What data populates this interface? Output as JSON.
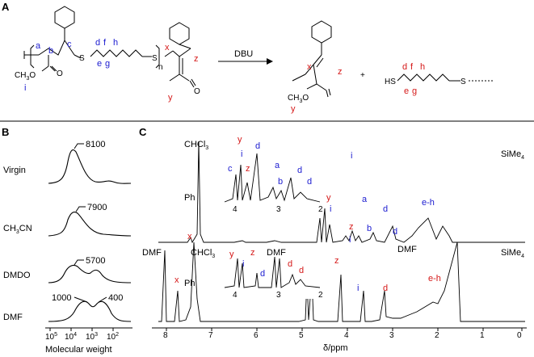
{
  "panel_a": {
    "label": "A",
    "arrow_reagent": "DBU",
    "plus": "+",
    "polymer_labels": [
      "a",
      "b",
      "c",
      "d",
      "f",
      "h",
      "e",
      "g",
      "i",
      "x",
      "y",
      "z"
    ],
    "polymer_atoms": [
      "S",
      "S",
      "n",
      "CH3O",
      "O",
      "O"
    ],
    "product_ester": "CH3O",
    "product_labels": [
      "x",
      "z",
      "y"
    ],
    "thiol_label": "HS",
    "thiol_S": "S",
    "thiol_labels": [
      "d",
      "f",
      "h",
      "e",
      "g"
    ]
  },
  "panel_b": {
    "label": "B",
    "xlabel": "Molecular weight",
    "ticks": [
      "10^5",
      "10^4",
      "10^3",
      "10^2"
    ],
    "tick_values": [
      100000,
      10000,
      1000,
      100
    ],
    "traces": [
      {
        "name": "Virgin",
        "peak_labels": [
          "8100"
        ]
      },
      {
        "name": "CH3CN",
        "peak_labels": [
          "7900"
        ]
      },
      {
        "name": "DMDO",
        "peak_labels": [
          "5700"
        ]
      },
      {
        "name": "DMF",
        "peak_labels": [
          "1000",
          "400"
        ]
      }
    ]
  },
  "panel_c": {
    "label": "C",
    "xlabel": "δ/ppm",
    "xlim": [
      8.4,
      -0.2
    ],
    "ticks": [
      "8",
      "7",
      "6",
      "5",
      "4",
      "3",
      "2",
      "1",
      "0"
    ],
    "inset_ticks": [
      "4",
      "3",
      "2"
    ],
    "top": {
      "solvent": "CHCl3",
      "reference": "SiMe4",
      "ph": "Ph",
      "labels_blue": [
        "c",
        "i",
        "d",
        "b",
        "d",
        "e-h",
        "a",
        "d",
        "d"
      ],
      "labels_red": [
        "x",
        "z",
        "y",
        "z"
      ],
      "inset_blue": [
        "c",
        "i",
        "d",
        "a",
        "b",
        "d",
        "d"
      ],
      "inset_red": [
        "y",
        "z"
      ]
    },
    "bottom": {
      "solvent": "CHCl3",
      "reference": "SiMe4",
      "ph": "Ph",
      "dmf": "DMF",
      "labels_blue": [
        "i",
        "i",
        "d"
      ],
      "labels_red": [
        "x",
        "y",
        "z",
        "d",
        "e-h",
        "y",
        "z",
        "d",
        "d"
      ]
    }
  },
  "chart_data": {
    "type": "line",
    "title": "",
    "xlabel": "Molecular weight",
    "ylabel": "",
    "x_scale": "log",
    "x_reversed": true,
    "series": [
      {
        "name": "Virgin",
        "peak_mw": [
          8100
        ]
      },
      {
        "name": "CH3CN",
        "peak_mw": [
          7900
        ]
      },
      {
        "name": "DMDO",
        "peak_mw": [
          5700
        ]
      },
      {
        "name": "DMF",
        "peak_mw": [
          1000,
          400
        ]
      }
    ]
  }
}
